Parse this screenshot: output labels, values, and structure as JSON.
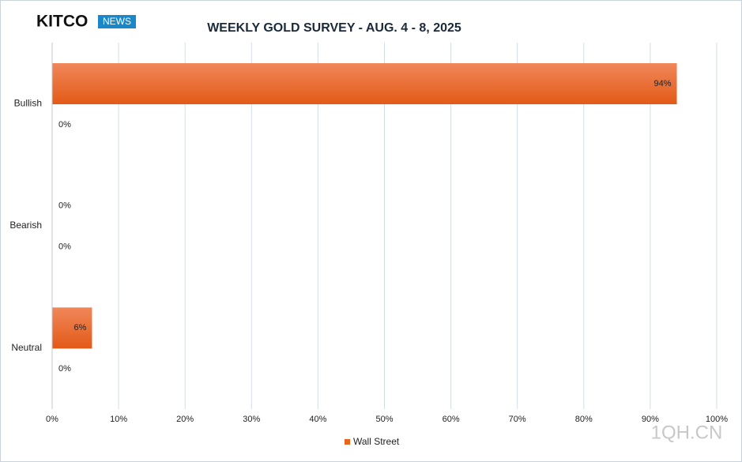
{
  "logo": "KITCO",
  "logo_tag": "NEWS",
  "watermark": "1QH.CN",
  "chart_data": {
    "type": "barh",
    "title": "WEEKLY GOLD SURVEY - AUG. 4 - 8, 2025",
    "categories": [
      "Bullish",
      "Bearish",
      "Neutral"
    ],
    "series": [
      {
        "name": "Wall Street",
        "color": "#e8641f",
        "values": [
          94,
          0,
          6
        ],
        "value_labels": [
          "94%",
          "0%",
          "6%"
        ]
      },
      {
        "values": [
          0,
          0,
          0
        ],
        "value_labels": [
          "0%",
          "0%",
          "0%"
        ]
      }
    ],
    "xlim": [
      0,
      100
    ],
    "xticks": [
      {
        "value": 0,
        "label": "0%"
      },
      {
        "value": 10,
        "label": "10%"
      },
      {
        "value": 20,
        "label": "20%"
      },
      {
        "value": 30,
        "label": "30%"
      },
      {
        "value": 40,
        "label": "40%"
      },
      {
        "value": 50,
        "label": "50%"
      },
      {
        "value": 60,
        "label": "60%"
      },
      {
        "value": 70,
        "label": "70%"
      },
      {
        "value": 80,
        "label": "80%"
      },
      {
        "value": 90,
        "label": "90%"
      },
      {
        "value": 100,
        "label": "100%"
      }
    ],
    "grid": true,
    "legend": "bottom"
  }
}
